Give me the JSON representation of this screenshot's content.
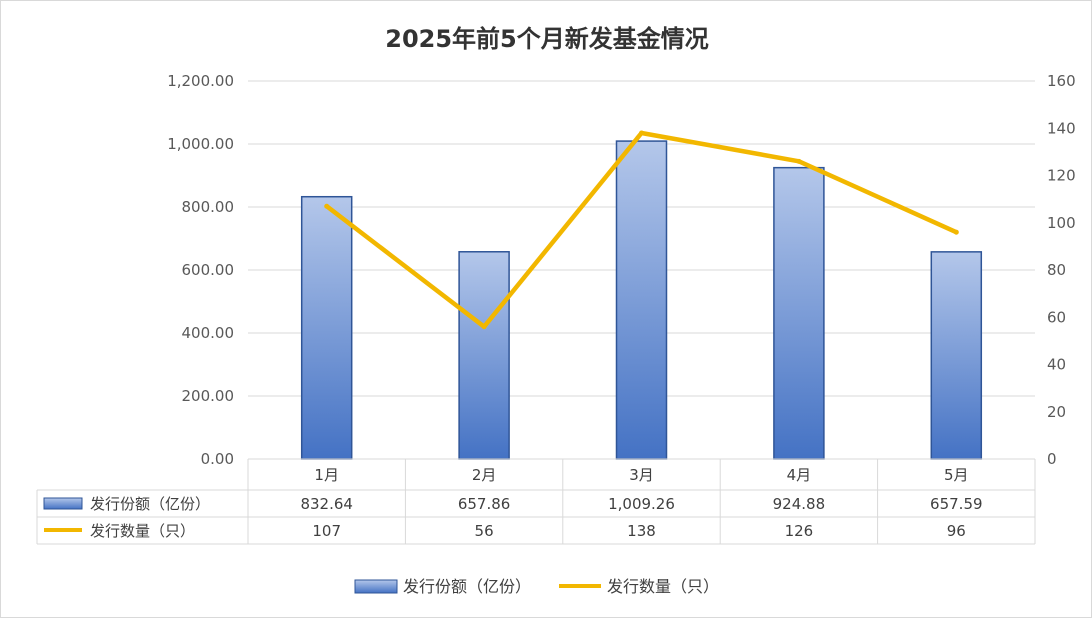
{
  "chart_data": {
    "type": "bar",
    "title": "2025年前5个月新发基金情况",
    "categories": [
      "1月",
      "2月",
      "3月",
      "4月",
      "5月"
    ],
    "series": [
      {
        "name": "发行份额（亿份）",
        "type": "bar",
        "axis": "left",
        "values": [
          832.64,
          657.86,
          1009.26,
          924.88,
          657.59
        ],
        "labels": [
          "832.64",
          "657.86",
          "1,009.26",
          "924.88",
          "657.59"
        ],
        "color_top": "#b4c7ea",
        "color_bottom": "#4472c4",
        "stroke": "#2f5597"
      },
      {
        "name": "发行数量（只）",
        "type": "line",
        "axis": "right",
        "values": [
          107,
          56,
          138,
          126,
          96
        ],
        "labels": [
          "107",
          "56",
          "138",
          "126",
          "96"
        ],
        "color": "#f2b700"
      }
    ],
    "y_left": {
      "min": 0,
      "max": 1200,
      "ticks": [
        0,
        200,
        400,
        600,
        800,
        1000,
        1200
      ],
      "tick_labels": [
        "0.00",
        "200.00",
        "400.00",
        "600.00",
        "800.00",
        "1,000.00",
        "1,200.00"
      ]
    },
    "y_right": {
      "min": 0,
      "max": 160,
      "ticks": [
        0,
        20,
        40,
        60,
        80,
        100,
        120,
        140,
        160
      ],
      "tick_labels": [
        "0",
        "20",
        "40",
        "60",
        "80",
        "100",
        "120",
        "140",
        "160"
      ]
    },
    "grid": true,
    "data_table": true,
    "legend_position": "bottom"
  }
}
